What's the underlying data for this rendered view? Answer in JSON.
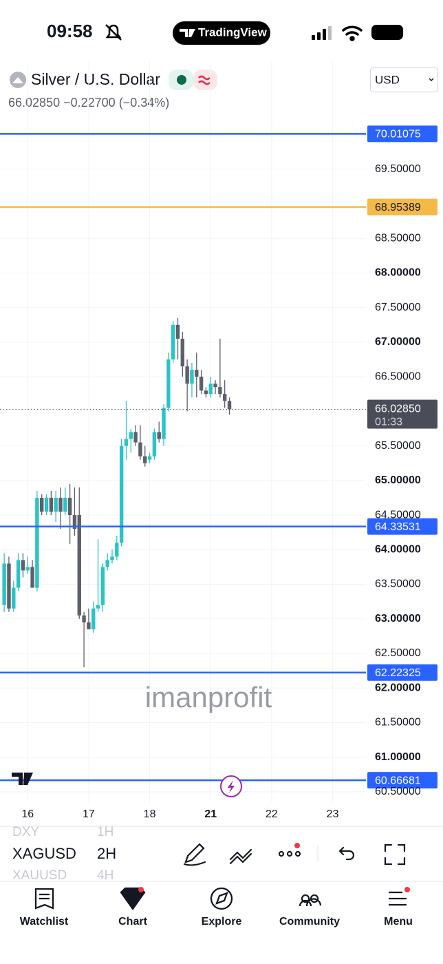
{
  "status_bar": {
    "time": "09:58",
    "app": "TradingView"
  },
  "header": {
    "symbol": "Silver / U.S. Dollar",
    "price": "66.02850",
    "change": "−0.22700",
    "change_pct": "(−0.34%)",
    "currency": "USD"
  },
  "chart_data": {
    "type": "candlestick",
    "watermark": "imanprofit",
    "x": [
      -5,
      -4,
      -3,
      -2,
      -1,
      0,
      1,
      2,
      3,
      4,
      5,
      6,
      7,
      8,
      9,
      10,
      11,
      12,
      13,
      14,
      15,
      16,
      17,
      18,
      19,
      20,
      21,
      22,
      23,
      24,
      25,
      26,
      27,
      28,
      29,
      30,
      31,
      32,
      33,
      34,
      35,
      36,
      37,
      38,
      39,
      40,
      41,
      42,
      43
    ],
    "open": [
      63.2,
      63.8,
      63.15,
      63.45,
      63.85,
      63.7,
      63.75,
      63.45,
      64.75,
      64.55,
      64.75,
      64.55,
      64.75,
      64.55,
      64.75,
      64.5,
      64.5,
      63.05,
      62.95,
      62.85,
      63.15,
      63.2,
      63.75,
      63.85,
      63.9,
      64.1,
      65.5,
      65.6,
      65.7,
      65.55,
      65.35,
      65.3,
      65.35,
      65.7,
      65.6,
      66.05,
      66.75,
      67.25,
      67.05,
      66.65,
      66.4,
      66.6,
      66.5,
      66.3,
      66.25,
      66.4,
      66.35,
      66.25,
      66.15
    ],
    "high": [
      63.95,
      63.9,
      63.55,
      63.95,
      63.95,
      63.9,
      63.85,
      64.85,
      64.8,
      64.8,
      64.85,
      64.85,
      64.9,
      64.9,
      64.95,
      64.9,
      64.9,
      63.1,
      63.15,
      63.25,
      64.15,
      63.8,
      63.95,
      64.0,
      64.2,
      65.6,
      66.15,
      65.75,
      65.8,
      65.8,
      65.5,
      65.4,
      65.75,
      65.85,
      66.1,
      66.85,
      67.3,
      67.35,
      67.15,
      66.75,
      66.7,
      66.85,
      66.6,
      66.35,
      66.5,
      66.45,
      67.05,
      66.45,
      66.2
    ],
    "low": [
      63.1,
      63.1,
      63.1,
      63.4,
      63.6,
      63.65,
      63.45,
      63.4,
      64.5,
      64.5,
      64.5,
      64.4,
      64.3,
      64.5,
      64.08,
      64.2,
      63.0,
      62.3,
      62.85,
      62.8,
      63.1,
      63.1,
      63.7,
      63.8,
      63.85,
      64.05,
      65.3,
      65.4,
      65.5,
      65.3,
      65.2,
      65.25,
      65.3,
      65.55,
      65.5,
      66.0,
      66.7,
      66.75,
      66.5,
      66.0,
      66.2,
      66.2,
      66.25,
      66.2,
      66.2,
      66.25,
      66.2,
      66.05,
      65.95
    ],
    "close": [
      63.8,
      63.15,
      63.45,
      63.85,
      63.7,
      63.75,
      63.45,
      64.75,
      64.55,
      64.75,
      64.55,
      64.75,
      64.55,
      64.75,
      64.5,
      64.3,
      63.05,
      62.95,
      62.85,
      63.15,
      63.2,
      63.75,
      63.85,
      63.9,
      64.1,
      65.5,
      65.6,
      65.7,
      65.55,
      65.35,
      65.25,
      65.35,
      65.7,
      65.6,
      66.05,
      66.75,
      67.25,
      67.05,
      66.65,
      66.4,
      66.6,
      66.5,
      66.3,
      66.25,
      66.4,
      66.35,
      66.25,
      66.15,
      66.0285
    ],
    "up_color": "#2cc3c6",
    "down_color": "#5d606b",
    "xlim": [
      -5.9,
      72.1
    ],
    "xticks": [
      {
        "value": 0,
        "label": "16"
      },
      {
        "value": 13,
        "label": "17"
      },
      {
        "value": 26,
        "label": "18"
      },
      {
        "value": 39,
        "label": "21",
        "bold": true
      },
      {
        "value": 52,
        "label": "22"
      },
      {
        "value": 65,
        "label": "23"
      }
    ],
    "ylim": [
      60.35,
      71.05
    ],
    "yticks": [
      {
        "value": 60.5,
        "label": "60.50000"
      },
      {
        "value": 61,
        "label": "61.00000"
      },
      {
        "value": 61.5,
        "label": "61.50000"
      },
      {
        "value": 62,
        "label": "62.00000"
      },
      {
        "value": 62.5,
        "label": "62.50000"
      },
      {
        "value": 63,
        "label": "63.00000"
      },
      {
        "value": 63.5,
        "label": "63.50000"
      },
      {
        "value": 64,
        "label": "64.00000"
      },
      {
        "value": 64.5,
        "label": "64.50000"
      },
      {
        "value": 65,
        "label": "65.00000"
      },
      {
        "value": 65.5,
        "label": "65.50000"
      },
      {
        "value": 66.5,
        "label": "66.50000"
      },
      {
        "value": 67,
        "label": "67.00000"
      },
      {
        "value": 67.5,
        "label": "67.50000"
      },
      {
        "value": 68,
        "label": "68.00000"
      },
      {
        "value": 68.5,
        "label": "68.50000"
      },
      {
        "value": 69.5,
        "label": "69.50000"
      }
    ],
    "grid": true,
    "levels": [
      {
        "value": 70.01075,
        "color": "#2962ff",
        "text_color": "#ffffff"
      },
      {
        "value": 68.95389,
        "color": "#f5b947",
        "text_color": "#131722"
      },
      {
        "value": 64.33531,
        "color": "#2962ff",
        "text_color": "#ffffff"
      },
      {
        "value": 62.22325,
        "color": "#2962ff",
        "text_color": "#ffffff"
      },
      {
        "value": 60.66681,
        "color": "#2962ff",
        "text_color": "#ffffff"
      }
    ],
    "last_price": {
      "value": 66.0285,
      "label": "66.02850"
    },
    "countdown": "01:33"
  },
  "toolbar": {
    "symbol_prev": "DXY",
    "symbol": "XAGUSD",
    "symbol_next": "XAUUSD",
    "interval_prev": "1H",
    "interval": "2H",
    "interval_next": "4H"
  },
  "tabs": [
    "Watchlist",
    "Chart",
    "Explore",
    "Community",
    "Menu"
  ]
}
